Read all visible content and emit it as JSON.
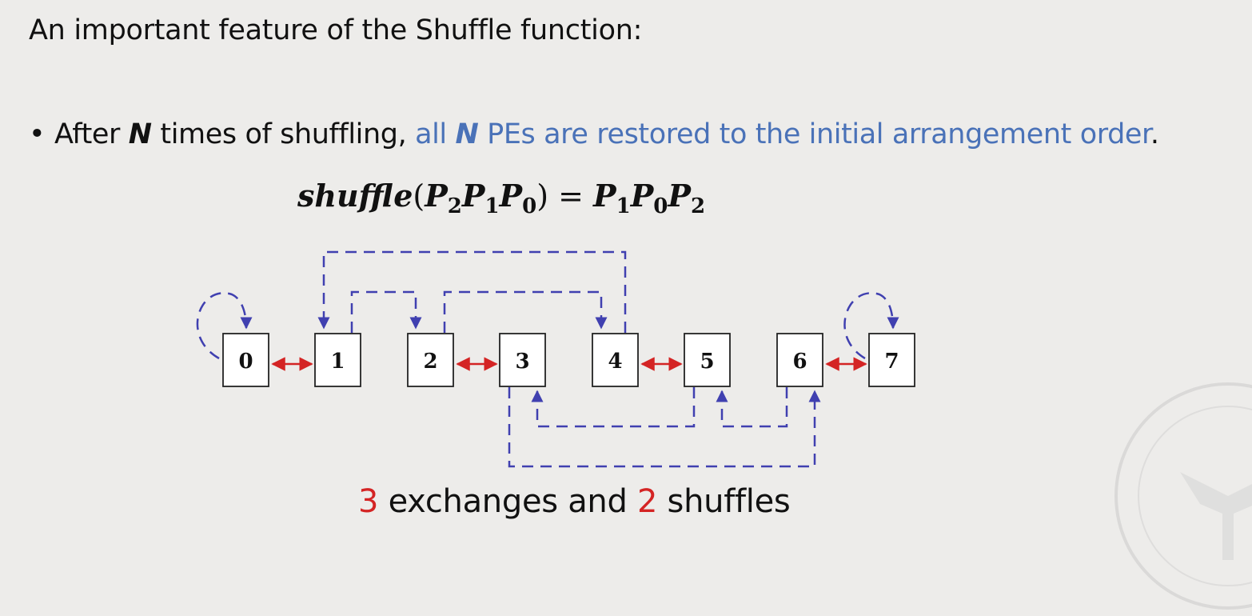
{
  "heading": "An important feature of the Shuffle function:",
  "bullet": {
    "marker": "•",
    "part1": "After ",
    "n1": "N",
    "part2": " times of shuffling, ",
    "blue1": "all ",
    "n2": "N",
    "blue2": " PEs are restored to the initial arrangement order",
    "end": "."
  },
  "formula": {
    "func": "shuffle",
    "lparen": "(",
    "p2": "P",
    "p2sub": "2",
    "p1": "P",
    "p1sub": "1",
    "p0": "P",
    "p0sub": "0",
    "rparen": ")",
    "eq": " = ",
    "r1": "P",
    "r1sub": "1",
    "r2": "P",
    "r2sub": "0",
    "r3": "P",
    "r3sub": "2"
  },
  "nodes": [
    "0",
    "1",
    "2",
    "3",
    "4",
    "5",
    "6",
    "7"
  ],
  "caption": {
    "count1": "3",
    "text1": " exchanges and ",
    "count2": "2",
    "text2": " shuffles"
  },
  "colors": {
    "exchange": "#d42424",
    "shuffle": "#4040b0",
    "highlight": "#4a72b8"
  }
}
